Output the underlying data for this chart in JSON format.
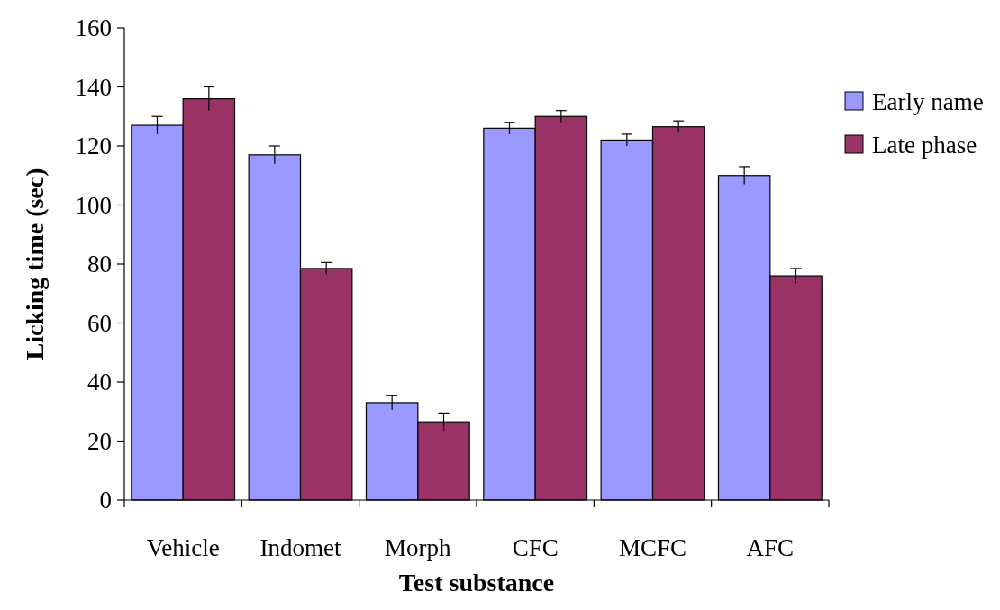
{
  "chart_data": {
    "type": "bar",
    "xlabel": "Test substance",
    "ylabel": "Licking time (sec)",
    "categories": [
      "Vehicle",
      "Indomet",
      "Morph",
      "CFC",
      "MCFC",
      "AFC"
    ],
    "series": [
      {
        "name": "Early name",
        "color": "#9999ff",
        "values": [
          127,
          117,
          33,
          126,
          122,
          110
        ],
        "errors": [
          3,
          3,
          2.5,
          2,
          2,
          3
        ]
      },
      {
        "name": "Late phase",
        "color": "#993366",
        "values": [
          136,
          78.5,
          26.5,
          130,
          126.5,
          76
        ],
        "errors": [
          4,
          2,
          3,
          2,
          2,
          2.5
        ]
      }
    ],
    "ylim": [
      0,
      160
    ],
    "yticks": [
      0,
      20,
      40,
      60,
      80,
      100,
      120,
      140,
      160
    ],
    "grid": false,
    "legend": "right"
  }
}
